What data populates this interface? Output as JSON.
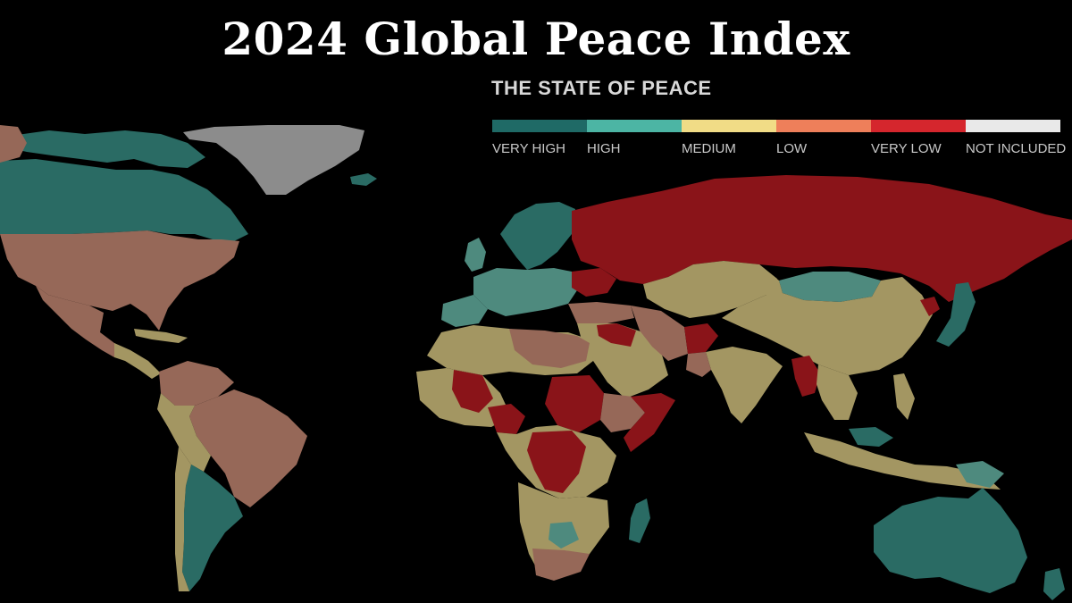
{
  "page": {
    "title": "2024 Global Peace Index",
    "subtitle": "THE STATE OF PEACE"
  },
  "legend": [
    {
      "label": "VERY HIGH",
      "color": "#1f6a66"
    },
    {
      "label": "HIGH",
      "color": "#4cb5a4"
    },
    {
      "label": "MEDIUM",
      "color": "#f1dc86"
    },
    {
      "label": "LOW",
      "color": "#ee7f5a"
    },
    {
      "label": "VERY LOW",
      "color": "#d5262d"
    },
    {
      "label": "NOT INCLUDED",
      "color": "#e9e9e9"
    }
  ],
  "map_colors": {
    "very_high": "#2a6b64",
    "high": "#4e8a7e",
    "medium": "#a39662",
    "low": "#966858",
    "very_low": "#8a1419",
    "not_included": "#8c8c8c",
    "background": "#000000"
  }
}
